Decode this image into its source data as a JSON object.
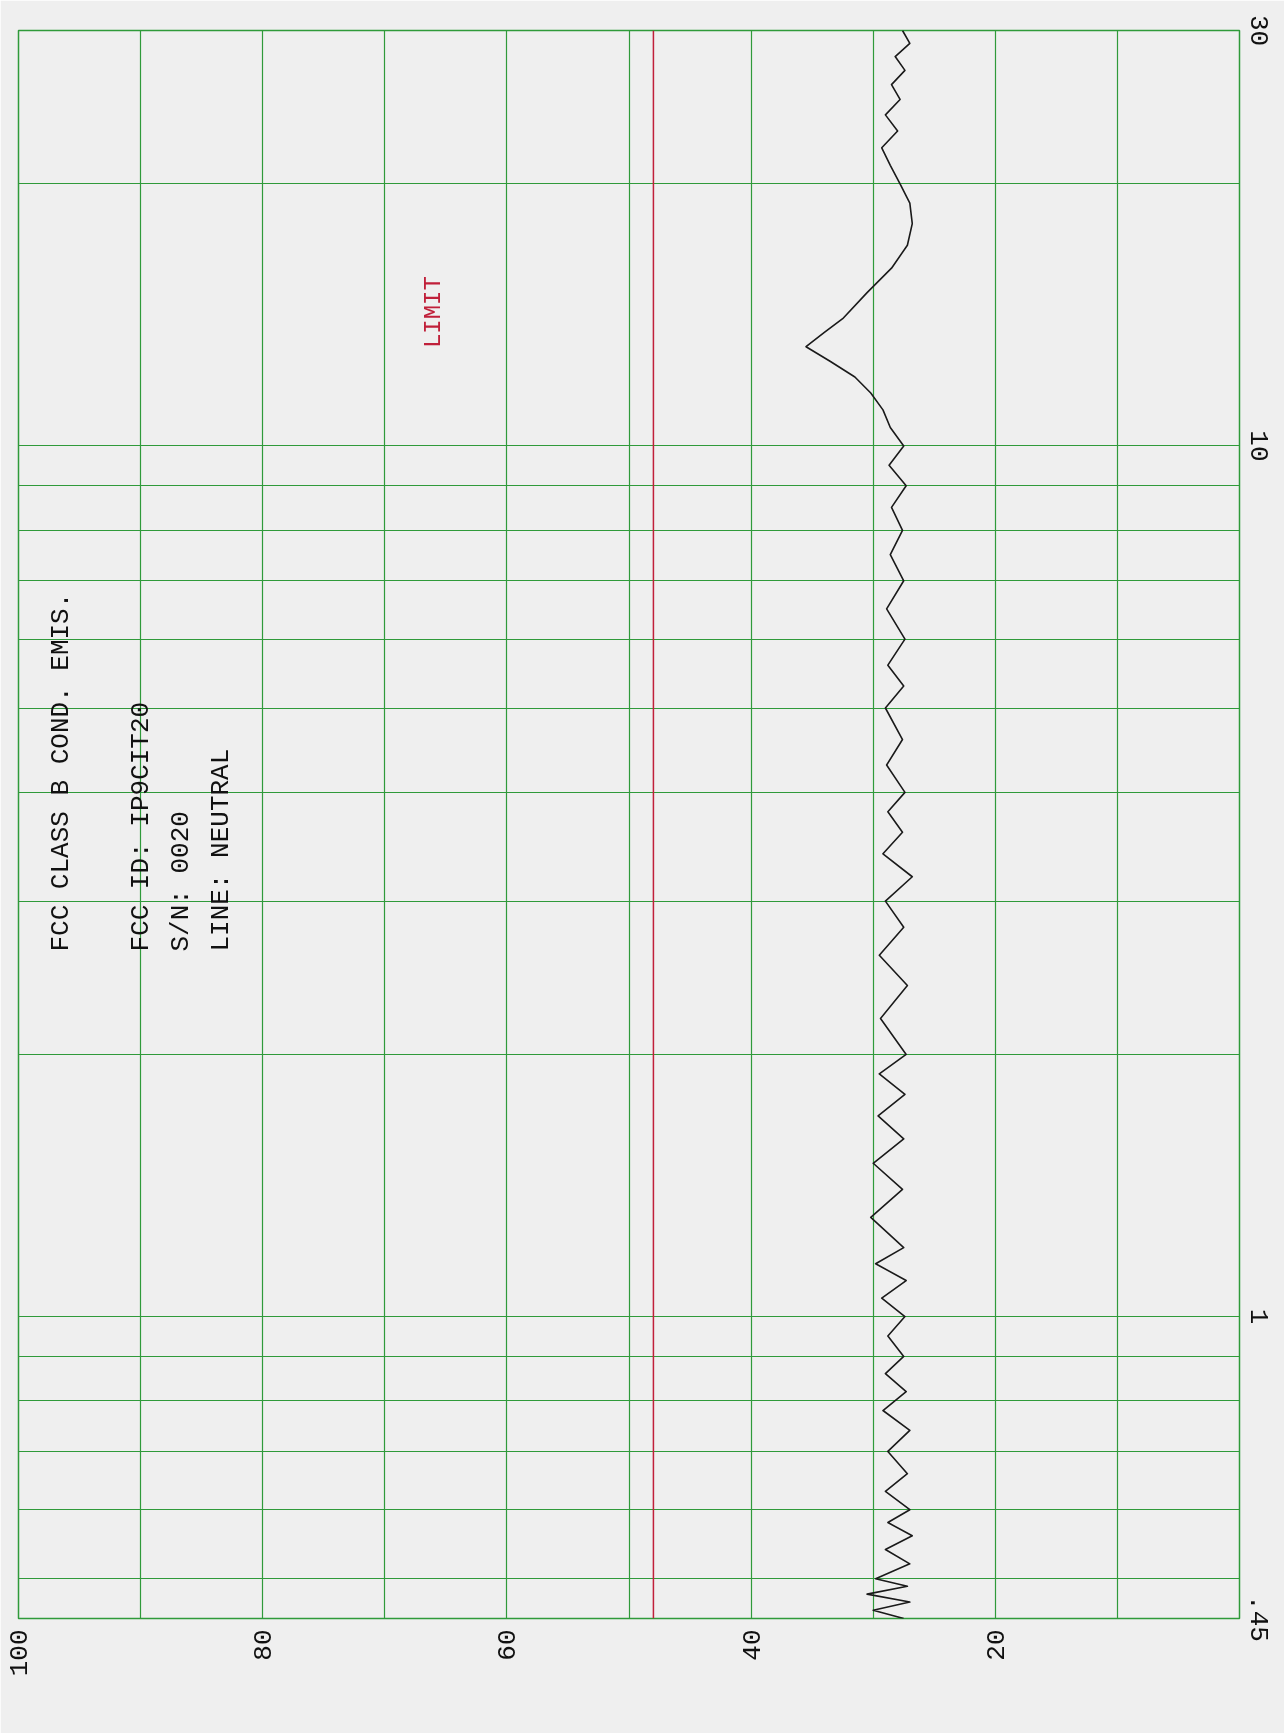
{
  "chart_data": {
    "type": "line",
    "title": "FCC  CLASS B COND. EMIS.",
    "annotations": [
      "FCC ID:  IP9CIT20",
      "S/N:  0020",
      "LINE:  NEUTRAL"
    ],
    "series": [
      {
        "color": "#1a1a1a",
        "x": [
          27.5,
          30.0,
          27.0,
          30.5,
          27.2,
          29.8,
          27.0,
          29.0,
          26.8,
          28.8,
          27.0,
          29.0,
          27.2,
          28.8,
          27.0,
          29.2,
          27.3,
          29.0,
          27.5,
          28.8,
          27.4,
          29.3,
          27.3,
          29.8,
          27.5,
          30.2,
          27.6,
          30.0,
          27.5,
          29.6,
          27.4,
          29.5,
          27.3,
          29.4,
          27.2,
          29.5,
          27.5,
          29.0,
          26.8,
          29.2,
          27.6,
          28.8,
          27.4,
          28.9,
          27.6,
          29.0,
          27.5,
          28.8,
          27.4,
          28.9,
          27.5,
          28.6,
          27.6,
          28.5,
          27.3,
          28.7,
          27.5,
          28.6,
          29.2,
          30.2,
          31.5,
          33.5,
          35.5,
          34.0,
          32.5,
          30.5,
          28.5,
          27.2,
          26.8,
          27.0,
          27.8,
          28.6,
          29.3,
          28.0,
          29.0,
          27.8,
          28.5,
          27.4,
          28.2,
          27.0,
          27.6
        ],
        "values": [
          0.45,
          0.46,
          0.47,
          0.48,
          0.49,
          0.5,
          0.52,
          0.54,
          0.56,
          0.58,
          0.6,
          0.63,
          0.66,
          0.7,
          0.74,
          0.78,
          0.82,
          0.86,
          0.9,
          0.95,
          1.0,
          1.05,
          1.1,
          1.15,
          1.2,
          1.3,
          1.4,
          1.5,
          1.6,
          1.7,
          1.8,
          1.9,
          2.0,
          2.2,
          2.4,
          2.6,
          2.8,
          3.0,
          3.2,
          3.4,
          3.6,
          3.8,
          4.0,
          4.3,
          4.6,
          5.0,
          5.3,
          5.6,
          6.0,
          6.5,
          7.0,
          7.5,
          8.0,
          8.5,
          9.0,
          9.5,
          10,
          10.5,
          11,
          11.5,
          12,
          12.5,
          13,
          13.5,
          14,
          15,
          16,
          17,
          18,
          19,
          20,
          21,
          22,
          23,
          24,
          25,
          26,
          27,
          28,
          29,
          30
        ]
      }
    ],
    "xlim": [
      100,
      0
    ],
    "xticks": [
      100,
      {
        "value": 90,
        "label": null
      },
      80,
      {
        "value": 70,
        "label": null
      },
      60,
      {
        "value": 50,
        "label": null
      },
      40,
      {
        "value": 30,
        "label": null
      },
      20,
      {
        "value": 10,
        "label": null
      }
    ],
    "ylim": [
      0.45,
      30
    ],
    "yticks": [
      {
        "value": 0.45,
        "label": ".45"
      },
      {
        "value": 0.5,
        "label": null
      },
      {
        "value": 0.6,
        "label": null
      },
      {
        "value": 0.7,
        "label": null
      },
      {
        "value": 0.8,
        "label": null
      },
      {
        "value": 0.9,
        "label": null
      },
      1,
      {
        "value": 2,
        "label": null
      },
      {
        "value": 3,
        "label": null
      },
      {
        "value": 4,
        "label": null
      },
      {
        "value": 5,
        "label": null
      },
      {
        "value": 6,
        "label": null
      },
      {
        "value": 7,
        "label": null
      },
      {
        "value": 8,
        "label": null
      },
      {
        "value": 9,
        "label": null
      },
      10,
      {
        "value": 20,
        "label": null
      },
      30
    ],
    "log": "y",
    "grid": true,
    "ref_lines": [
      {
        "axis": "x",
        "value": 48,
        "label": "LIMIT",
        "color": "#c0203a"
      }
    ]
  }
}
